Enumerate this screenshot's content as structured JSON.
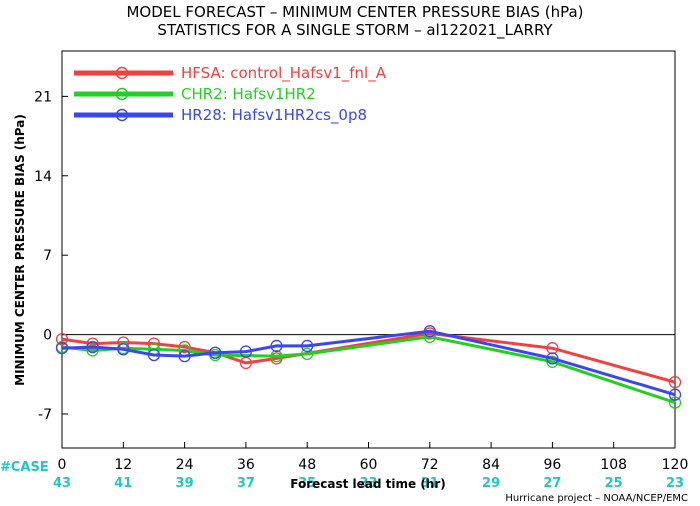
{
  "title_line1": "MODEL FORECAST – MINIMUM CENTER PRESSURE BIAS (hPa)",
  "title_line2": "STATISTICS FOR A SINGLE STORM – al122021_LARRY",
  "credit": "Hurricane project – NOAA/NCEP/EMC",
  "case_label": "#CASE",
  "case_counts": [
    "43",
    "41",
    "39",
    "37",
    "35",
    "33",
    "31",
    "29",
    "27",
    "25",
    "23"
  ],
  "case_color": "#1fc7c7",
  "chart_data": {
    "type": "line",
    "xlabel": "Forecast lead time (hr)",
    "ylabel": "MINIMUM CENTER PRESSURE BIAS (hPa)",
    "xlim": [
      0,
      120
    ],
    "ylim": [
      -10,
      25
    ],
    "xticks": [
      0,
      12,
      24,
      36,
      48,
      60,
      72,
      84,
      96,
      108,
      120
    ],
    "yticks": [
      -7,
      0,
      7,
      14,
      21
    ],
    "grid": false,
    "zero_line": true,
    "legend_position": "top-left",
    "series": [
      {
        "name": "HFSA: control_Hafsv1_fnl_A",
        "color": "#f24040",
        "x": [
          0,
          6,
          12,
          18,
          24,
          30,
          36,
          42,
          72,
          96,
          120
        ],
        "y": [
          -0.4,
          -0.8,
          -0.7,
          -0.8,
          -1.1,
          -1.6,
          -2.5,
          -2.1,
          0.1,
          -1.2,
          -4.2
        ]
      },
      {
        "name": "CHR2: Hafsv1HR2",
        "color": "#22d022",
        "x": [
          0,
          6,
          12,
          18,
          24,
          30,
          42,
          48,
          72,
          96,
          120
        ],
        "y": [
          -1.1,
          -1.4,
          -1.2,
          -1.3,
          -1.4,
          -1.8,
          -1.9,
          -1.7,
          -0.2,
          -2.4,
          -6.0
        ]
      },
      {
        "name": "HR28: Hafsv1HR2cs_0p8",
        "color": "#3a46f0",
        "x": [
          0,
          6,
          12,
          18,
          24,
          30,
          36,
          42,
          48,
          72,
          96,
          120
        ],
        "y": [
          -1.2,
          -1.1,
          -1.3,
          -1.8,
          -1.9,
          -1.6,
          -1.5,
          -1.0,
          -1.0,
          0.3,
          -2.1,
          -5.3
        ]
      }
    ]
  }
}
